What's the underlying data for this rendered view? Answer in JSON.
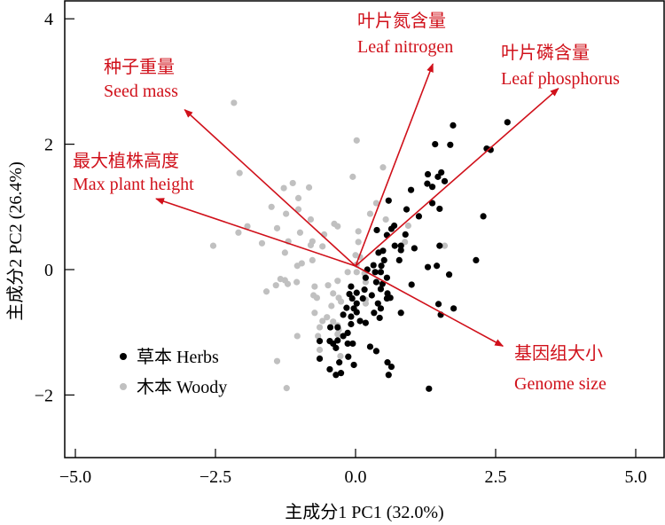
{
  "chart_data": {
    "type": "scatter",
    "subtype": "pca-biplot",
    "xlabel": "主成分1 PC1 (32.0%)",
    "ylabel": "主成分2 PC2 (26.4%)",
    "xlim": [
      -5.3,
      5.4
    ],
    "ylim": [
      -3.0,
      4.3
    ],
    "xticks": [
      -5.0,
      -2.5,
      0.0,
      2.5,
      5.0
    ],
    "xtick_labels": [
      "−5.0",
      "−2.5",
      "0.0",
      "2.5",
      "5.0"
    ],
    "yticks": [
      4,
      2,
      0,
      -2
    ],
    "ytick_labels": [
      "4",
      "2",
      "0",
      "−2"
    ],
    "grid": false,
    "legend_position": "bottom-left",
    "colors": {
      "herbs": "#000000",
      "woody": "#c0c0c0",
      "vectors": "#d0101a"
    },
    "vectors": [
      {
        "label_cn": "种子重量",
        "label_en": "Seed mass",
        "x": -3.05,
        "y": 2.55
      },
      {
        "label_cn": "最大植株高度",
        "label_en": "Max plant height",
        "x": -3.56,
        "y": 1.13
      },
      {
        "label_cn": "叶片氮含量",
        "label_en": "Leaf nitrogen",
        "x": 1.38,
        "y": 3.28
      },
      {
        "label_cn": "叶片磷含量",
        "label_en": "Leaf phosphorus",
        "x": 3.62,
        "y": 2.89
      },
      {
        "label_cn": "基因组大小",
        "label_en": "Genome size",
        "x": 2.63,
        "y": -1.22
      }
    ],
    "series": [
      {
        "name": "草本 Herbs",
        "points": [
          [
            1.74,
            2.3
          ],
          [
            2.71,
            2.35
          ],
          [
            1.42,
            2.0
          ],
          [
            1.69,
            1.99
          ],
          [
            2.34,
            1.93
          ],
          [
            2.41,
            1.91
          ],
          [
            1.29,
            1.52
          ],
          [
            1.53,
            1.55
          ],
          [
            1.47,
            1.48
          ],
          [
            1.59,
            1.41
          ],
          [
            1.28,
            1.37
          ],
          [
            1.37,
            1.32
          ],
          [
            0.99,
            1.27
          ],
          [
            0.59,
            1.1
          ],
          [
            1.37,
            1.06
          ],
          [
            1.5,
            0.97
          ],
          [
            0.91,
            0.96
          ],
          [
            1.13,
            0.85
          ],
          [
            2.28,
            0.85
          ],
          [
            0.69,
            0.7
          ],
          [
            0.64,
            0.65
          ],
          [
            0.38,
            0.63
          ],
          [
            0.89,
            0.56
          ],
          [
            0.56,
            0.55
          ],
          [
            0.7,
            0.38
          ],
          [
            0.81,
            0.38
          ],
          [
            0.81,
            0.31
          ],
          [
            1.05,
            0.34
          ],
          [
            1.5,
            0.38
          ],
          [
            0.49,
            0.3
          ],
          [
            0.41,
            0.27
          ],
          [
            0.78,
            0.15
          ],
          [
            0.51,
            0.15
          ],
          [
            2.15,
            0.15
          ],
          [
            1.29,
            0.04
          ],
          [
            1.45,
            0.06
          ],
          [
            0.32,
            0.07
          ],
          [
            0.46,
            0.06
          ],
          [
            0.21,
            0.0
          ],
          [
            0.35,
            -0.04
          ],
          [
            0.45,
            -0.04
          ],
          [
            1.67,
            -0.08
          ],
          [
            0.56,
            -0.13
          ],
          [
            0.18,
            -0.13
          ],
          [
            0.37,
            -0.2
          ],
          [
            0.48,
            -0.23
          ],
          [
            1.0,
            -0.24
          ],
          [
            -0.08,
            -0.27
          ],
          [
            0.16,
            -0.32
          ],
          [
            0.45,
            -0.31
          ],
          [
            0.02,
            -0.37
          ],
          [
            -0.11,
            -0.39
          ],
          [
            0.57,
            -0.38
          ],
          [
            0.29,
            -0.41
          ],
          [
            0.62,
            -0.45
          ],
          [
            -0.06,
            -0.46
          ],
          [
            0.13,
            -0.46
          ],
          [
            0.56,
            -0.46
          ],
          [
            0.02,
            -0.54
          ],
          [
            0.4,
            -0.54
          ],
          [
            -0.16,
            -0.61
          ],
          [
            -0.03,
            -0.62
          ],
          [
            0.45,
            -0.62
          ],
          [
            1.48,
            -0.55
          ],
          [
            1.75,
            -0.62
          ],
          [
            0.02,
            -0.68
          ],
          [
            0.33,
            -0.69
          ],
          [
            0.81,
            -0.69
          ],
          [
            1.52,
            -0.72
          ],
          [
            -0.22,
            -0.72
          ],
          [
            -0.08,
            -0.75
          ],
          [
            0.43,
            -0.77
          ],
          [
            0.08,
            -0.82
          ],
          [
            0.18,
            -0.85
          ],
          [
            -0.08,
            -0.87
          ],
          [
            -0.32,
            -0.92
          ],
          [
            -0.45,
            -0.92
          ],
          [
            -0.14,
            -1.01
          ],
          [
            -0.22,
            -1.06
          ],
          [
            -0.64,
            -1.14
          ],
          [
            -0.46,
            -1.14
          ],
          [
            -0.32,
            -1.13
          ],
          [
            -0.4,
            -1.18
          ],
          [
            -0.14,
            -1.18
          ],
          [
            -0.05,
            -1.18
          ],
          [
            -0.35,
            -1.25
          ],
          [
            0.26,
            -1.23
          ],
          [
            0.37,
            -1.3
          ],
          [
            -0.64,
            -1.42
          ],
          [
            -0.13,
            -1.39
          ],
          [
            -0.29,
            -1.48
          ],
          [
            -0.03,
            -1.52
          ],
          [
            0.57,
            -1.48
          ],
          [
            0.64,
            -1.55
          ],
          [
            -0.46,
            -1.59
          ],
          [
            -0.26,
            -1.65
          ],
          [
            -0.35,
            -1.68
          ],
          [
            0.59,
            -1.68
          ],
          [
            1.31,
            -1.9
          ]
        ]
      },
      {
        "name": "木本 Woody",
        "points": [
          [
            -2.17,
            2.66
          ],
          [
            0.02,
            2.06
          ],
          [
            0.49,
            1.63
          ],
          [
            -2.07,
            1.54
          ],
          [
            -0.05,
            1.48
          ],
          [
            -1.12,
            1.38
          ],
          [
            -1.28,
            1.3
          ],
          [
            -0.83,
            1.31
          ],
          [
            -1.02,
            1.14
          ],
          [
            -1.5,
            1.0
          ],
          [
            -1.02,
            0.96
          ],
          [
            0.37,
            1.06
          ],
          [
            -1.24,
            0.89
          ],
          [
            -0.8,
            0.8
          ],
          [
            0.26,
            0.89
          ],
          [
            0.54,
            0.8
          ],
          [
            -1.93,
            0.69
          ],
          [
            -1.4,
            0.66
          ],
          [
            -0.38,
            0.73
          ],
          [
            -0.32,
            0.69
          ],
          [
            0.94,
            0.7
          ],
          [
            -2.09,
            0.59
          ],
          [
            -0.99,
            0.59
          ],
          [
            -0.56,
            0.56
          ],
          [
            0.05,
            0.61
          ],
          [
            -2.54,
            0.38
          ],
          [
            -1.67,
            0.42
          ],
          [
            -1.2,
            0.45
          ],
          [
            -0.77,
            0.45
          ],
          [
            -0.59,
            0.37
          ],
          [
            -0.8,
            0.39
          ],
          [
            0.05,
            0.44
          ],
          [
            0.88,
            0.44
          ],
          [
            1.59,
            0.38
          ],
          [
            -1.26,
            0.27
          ],
          [
            -0.77,
            0.15
          ],
          [
            0.0,
            0.23
          ],
          [
            0.08,
            0.2
          ],
          [
            -0.96,
            0.1
          ],
          [
            -1.04,
            0.06
          ],
          [
            0.02,
            0.08
          ],
          [
            -0.14,
            -0.04
          ],
          [
            0.02,
            -0.04
          ],
          [
            0.16,
            -0.06
          ],
          [
            -1.34,
            -0.15
          ],
          [
            -1.26,
            -0.17
          ],
          [
            -1.42,
            -0.25
          ],
          [
            -1.21,
            -0.23
          ],
          [
            -1.05,
            -0.2
          ],
          [
            -0.32,
            -0.18
          ],
          [
            -1.59,
            -0.35
          ],
          [
            -0.73,
            -0.27
          ],
          [
            -0.49,
            -0.25
          ],
          [
            0.18,
            -0.2
          ],
          [
            -0.4,
            -0.38
          ],
          [
            -0.75,
            -0.41
          ],
          [
            -0.69,
            -0.45
          ],
          [
            -0.3,
            -0.45
          ],
          [
            -0.26,
            -0.51
          ],
          [
            0.18,
            -0.48
          ],
          [
            -0.43,
            -0.58
          ],
          [
            0.18,
            -0.54
          ],
          [
            -0.73,
            -0.69
          ],
          [
            -0.51,
            -0.76
          ],
          [
            -0.59,
            -0.82
          ],
          [
            -0.4,
            -0.83
          ],
          [
            -0.32,
            -0.89
          ],
          [
            -0.64,
            -0.92
          ],
          [
            -0.3,
            -0.96
          ],
          [
            -0.67,
            -1.06
          ],
          [
            -1.04,
            -1.06
          ],
          [
            -0.32,
            -1.03
          ],
          [
            -0.64,
            -1.28
          ],
          [
            -0.27,
            -1.38
          ],
          [
            -1.4,
            -1.46
          ],
          [
            -1.23,
            -1.89
          ]
        ]
      }
    ]
  }
}
